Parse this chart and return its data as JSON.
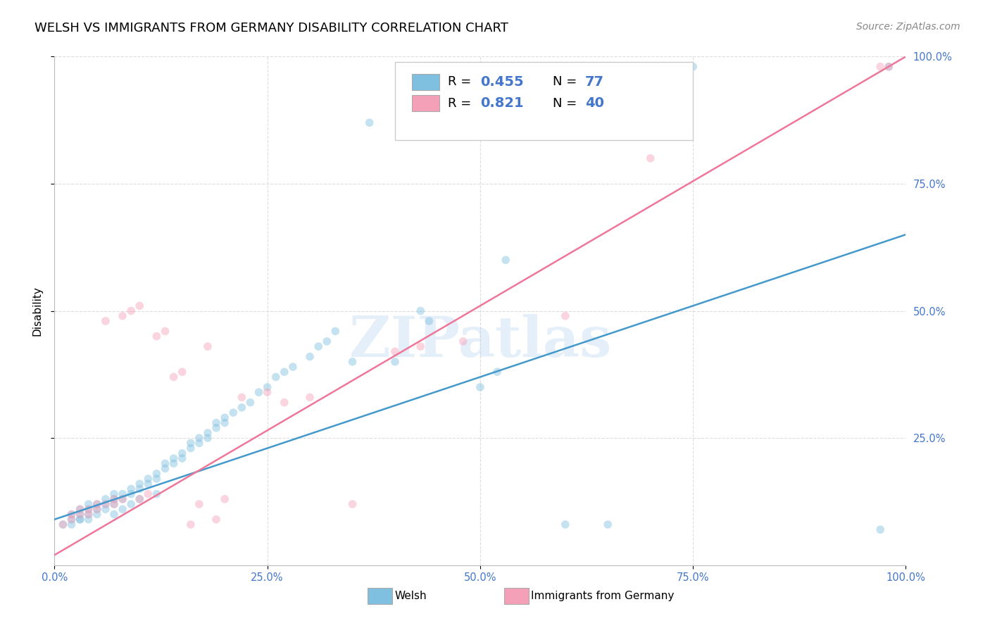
{
  "title": "WELSH VS IMMIGRANTS FROM GERMANY DISABILITY CORRELATION CHART",
  "source": "Source: ZipAtlas.com",
  "ylabel": "Disability",
  "xlabel": "",
  "watermark": "ZIPatlas",
  "welsh_R": 0.455,
  "welsh_N": 77,
  "germany_R": 0.821,
  "germany_N": 40,
  "welsh_color": "#7fbfdf",
  "germany_color": "#f4a0b8",
  "welsh_line_color": "#4499cc",
  "germany_line_color": "#ee7799",
  "background_color": "#ffffff",
  "grid_color": "#dddddd",
  "xlim": [
    0,
    1
  ],
  "ylim": [
    0,
    1
  ],
  "xticks": [
    0,
    0.25,
    0.5,
    0.75,
    1.0
  ],
  "yticks": [
    0.25,
    0.5,
    0.75,
    1.0
  ],
  "xticklabels": [
    "0.0%",
    "25.0%",
    "50.0%",
    "75.0%",
    "100.0%"
  ],
  "yticklabels": [
    "25.0%",
    "50.0%",
    "75.0%",
    "100.0%"
  ],
  "tick_color": "#4477cc",
  "title_fontsize": 13,
  "label_fontsize": 11,
  "tick_fontsize": 10.5,
  "source_fontsize": 10,
  "marker_size": 70,
  "marker_alpha": 0.45,
  "line_width": 1.8,
  "welsh_line_start": 0.09,
  "welsh_line_end": 0.65,
  "germany_line_start": 0.02,
  "germany_line_end": 1.0
}
